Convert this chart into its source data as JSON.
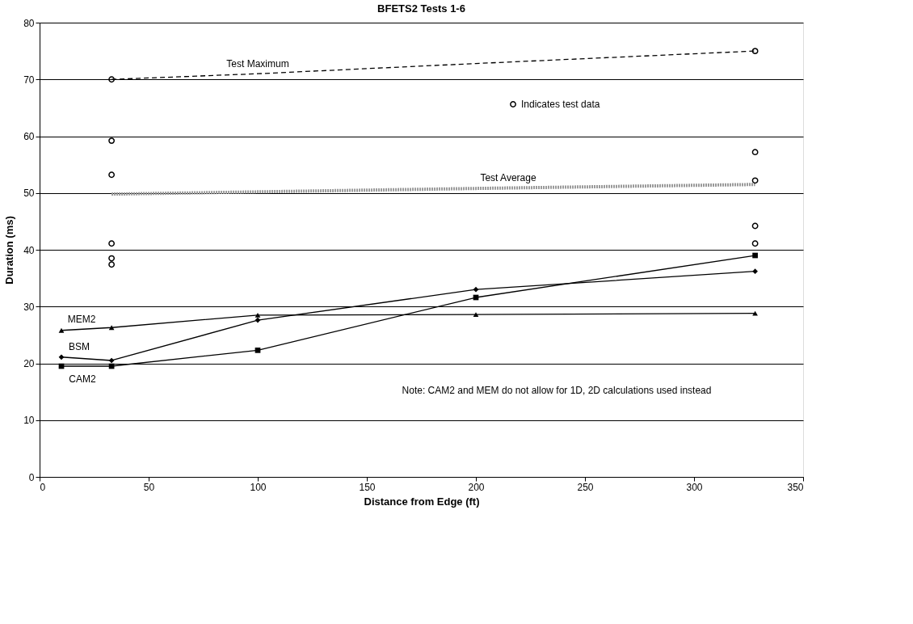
{
  "chart_data": {
    "type": "line",
    "title": "BFETS2 Tests 1-6",
    "xlabel": "Distance from Edge (ft)",
    "ylabel": "Duration (ms)",
    "xlim": [
      0,
      350
    ],
    "xticks": [
      0,
      50,
      100,
      150,
      200,
      250,
      300,
      350
    ],
    "ylim": [
      0,
      80
    ],
    "yticks": [
      0,
      10,
      20,
      30,
      40,
      50,
      60,
      70,
      80
    ],
    "grid": "y",
    "legend": "top right",
    "annotations": [
      "Note: CAM2 and MEM do not allow for 1D, 2D calculations used instead"
    ],
    "series": [
      {
        "name": "Test Maximum",
        "color": "#000000",
        "line_style": "dashed",
        "marker": "none",
        "x": [
          33,
          100,
          200,
          328
        ],
        "values": [
          70,
          71,
          72.8,
          75
        ]
      },
      {
        "name": "Test Average",
        "color": "#9a9a9a",
        "line_style": "dotted",
        "marker": "none",
        "x": [
          33,
          100,
          200,
          328
        ],
        "values": [
          49.8,
          50.2,
          50.8,
          51.5
        ]
      },
      {
        "name": "Indicates test data",
        "type": "scatter",
        "color": "#000000",
        "marker": "circle",
        "x": [
          33,
          33,
          33,
          33,
          33,
          33,
          328,
          328,
          328,
          328,
          328
        ],
        "values": [
          70,
          59.2,
          53.2,
          41.1,
          38.5,
          37.4,
          75,
          57.2,
          52.2,
          44.2,
          41.1
        ]
      },
      {
        "name": "MEM2",
        "color": "#000000",
        "line_style": "solid",
        "marker": "triangle",
        "x": [
          10,
          33,
          100,
          200,
          328
        ],
        "values": [
          25.8,
          26.3,
          28.5,
          28.6,
          28.8
        ]
      },
      {
        "name": "BSM",
        "color": "#000000",
        "line_style": "solid",
        "marker": "diamond",
        "x": [
          10,
          33,
          100,
          200,
          328
        ],
        "values": [
          21.1,
          20.5,
          27.6,
          33.0,
          36.2
        ]
      },
      {
        "name": "CAM2",
        "color": "#000000",
        "line_style": "solid",
        "marker": "square",
        "x": [
          10,
          33,
          100,
          200,
          328
        ],
        "values": [
          19.5,
          19.5,
          22.3,
          31.6,
          39.0
        ]
      }
    ]
  }
}
